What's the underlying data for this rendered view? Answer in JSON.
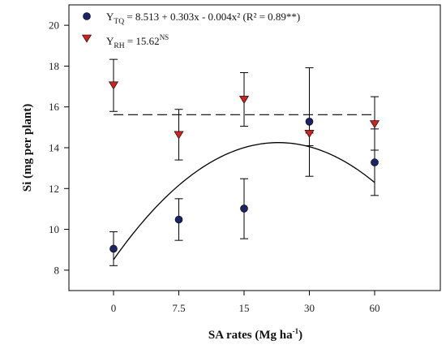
{
  "chart_data": {
    "type": "scatter",
    "categories": [
      "0",
      "7.5",
      "15",
      "30",
      "60"
    ],
    "xlabel": {
      "text": "SA rates (Mg ha",
      "sup": "-1",
      "suffix": ")"
    },
    "ylabel": "Si (mg per plant)",
    "ylim": [
      7,
      21
    ],
    "yticks": [
      8,
      10,
      12,
      14,
      16,
      18,
      20
    ],
    "grid": false,
    "legend_position": "top-left",
    "series": [
      {
        "key": "TQ",
        "legend": {
          "prefix": "Y",
          "sub": "TQ",
          "text": " = 8.513 + 0.303x - 0.004x² (R² = 0.89**)"
        },
        "marker": "circle",
        "color": "#1a2466",
        "values": [
          9.05,
          10.48,
          11.02,
          15.28,
          13.28
        ],
        "err_high": [
          9.88,
          11.5,
          12.48,
          17.92,
          14.92
        ],
        "err_low": [
          8.22,
          9.46,
          9.54,
          12.6,
          11.66
        ],
        "fit": {
          "kind": "quadratic",
          "coef": [
            8.513,
            0.303,
            -0.004
          ],
          "line_style": "solid",
          "x_values": [
            0,
            7.5,
            15,
            30,
            60
          ]
        }
      },
      {
        "key": "RH",
        "legend": {
          "prefix": "Y",
          "sub": "RH",
          "text": " = 15.62",
          "sup": "NS"
        },
        "marker": "triangle-down",
        "color": "#cc2222",
        "values": [
          17.05,
          14.62,
          16.35,
          14.68,
          15.15
        ],
        "err_high": [
          18.33,
          15.88,
          17.68,
          14.72,
          16.5
        ],
        "err_low": [
          15.78,
          13.4,
          15.05,
          14.1,
          13.88
        ],
        "fit": {
          "kind": "constant",
          "value": 15.62,
          "line_style": "dashed"
        }
      }
    ]
  }
}
